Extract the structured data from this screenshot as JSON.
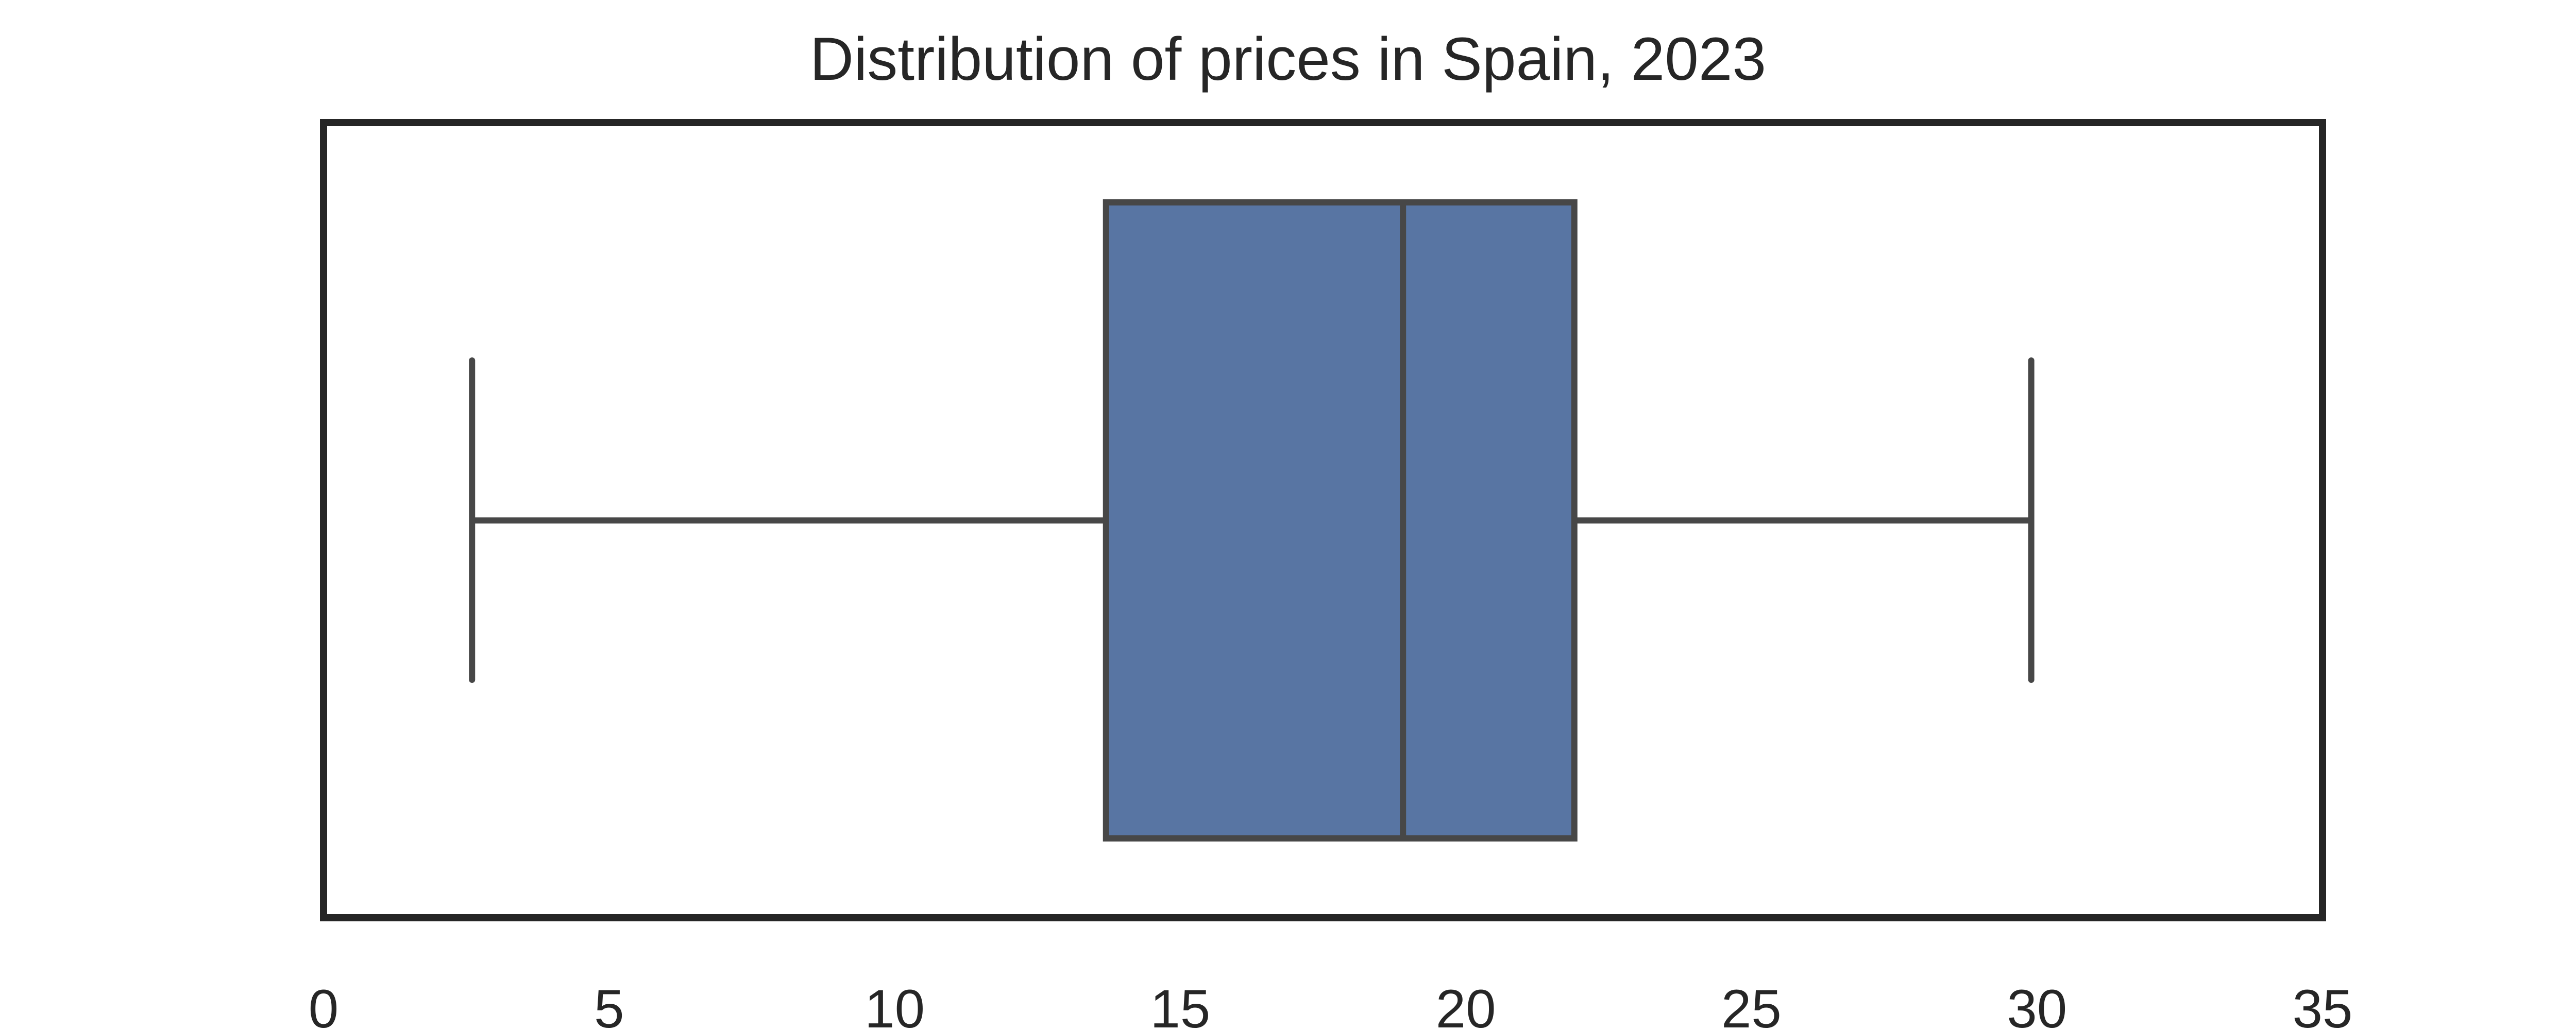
{
  "chart_data": {
    "type": "box",
    "title": "Distribution of prices in Spain, 2023",
    "xlabel": "",
    "ylabel": "",
    "orientation": "horizontal",
    "xlim": [
      0,
      35
    ],
    "xticks": [
      0,
      5,
      10,
      15,
      20,
      25,
      30,
      35
    ],
    "grid": false,
    "box": {
      "whisker_low": 2.6,
      "q1": 13.7,
      "median": 18.9,
      "q3": 21.9,
      "whisker_high": 29.9
    },
    "colors": {
      "box_fill": "#5875a3",
      "line": "#474747",
      "frame": "#262626",
      "text": "#262626"
    }
  }
}
